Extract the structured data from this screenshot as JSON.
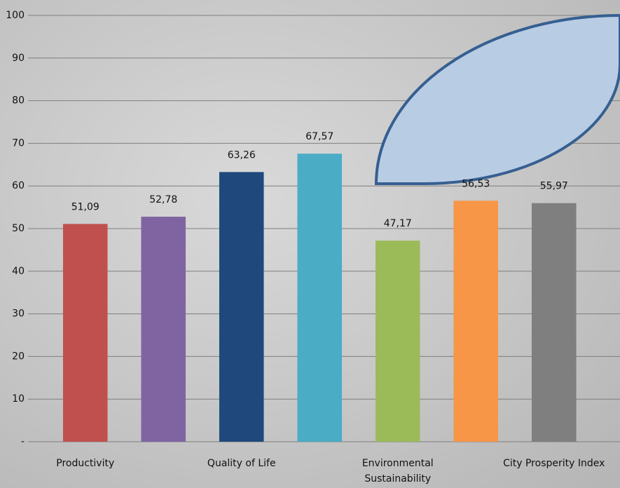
{
  "chart_data": {
    "type": "bar",
    "categories": [
      "Productivity",
      null,
      "Quality of Life",
      null,
      "Environmental Sustainability",
      null,
      "City Prosperity Index"
    ],
    "values": [
      51.09,
      52.78,
      63.26,
      67.57,
      47.17,
      56.53,
      55.97
    ],
    "value_labels": [
      "51,09",
      "52,78",
      "63,26",
      "67,57",
      "47,17",
      "56,53",
      "55,97"
    ],
    "colors": [
      "#c0504d",
      "#8064a2",
      "#1f497d",
      "#4bacc6",
      "#9bbb59",
      "#f79646",
      "#7f7f7f"
    ],
    "ylim": [
      0,
      100
    ],
    "yticks": [
      {
        "value": 0,
        "label": "-"
      },
      10,
      20,
      30,
      40,
      50,
      60,
      70,
      80,
      90,
      100
    ],
    "grid": true
  }
}
